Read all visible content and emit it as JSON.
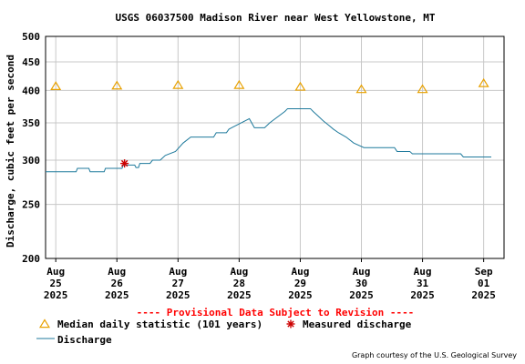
{
  "colors": {
    "discharge": "#1f7a9c",
    "median": "#e8a100",
    "measured": "#cc0000",
    "grid": "#c8c8c8",
    "provisional": "#ff0000"
  },
  "chart_data": {
    "type": "line",
    "title": "USGS 06037500 Madison River near West Yellowstone, MT",
    "ylabel": "Discharge, cubic feet per second",
    "yscale": "log",
    "ylim": [
      200,
      500
    ],
    "yticks": [
      200,
      250,
      300,
      350,
      400,
      450,
      500
    ],
    "xlim": [
      "2025-08-24T20:00",
      "2025-09-01T08:00"
    ],
    "xticks": [
      {
        "date": "2025-08-25",
        "lines": [
          "Aug",
          "25",
          "2025"
        ]
      },
      {
        "date": "2025-08-26",
        "lines": [
          "Aug",
          "26",
          "2025"
        ]
      },
      {
        "date": "2025-08-27",
        "lines": [
          "Aug",
          "27",
          "2025"
        ]
      },
      {
        "date": "2025-08-28",
        "lines": [
          "Aug",
          "28",
          "2025"
        ]
      },
      {
        "date": "2025-08-29",
        "lines": [
          "Aug",
          "29",
          "2025"
        ]
      },
      {
        "date": "2025-08-30",
        "lines": [
          "Aug",
          "30",
          "2025"
        ]
      },
      {
        "date": "2025-08-31",
        "lines": [
          "Aug",
          "31",
          "2025"
        ]
      },
      {
        "date": "2025-09-01",
        "lines": [
          "Sep",
          "01",
          "2025"
        ]
      }
    ],
    "series": [
      {
        "name": "Discharge",
        "style": "line",
        "points": [
          [
            "2025-08-24T20:00",
            286
          ],
          [
            "2025-08-25T08:00",
            286
          ],
          [
            "2025-08-25T08:30",
            290
          ],
          [
            "2025-08-25T13:00",
            290
          ],
          [
            "2025-08-25T13:30",
            286
          ],
          [
            "2025-08-25T19:00",
            286
          ],
          [
            "2025-08-25T19:30",
            290
          ],
          [
            "2025-08-26T02:00",
            290
          ],
          [
            "2025-08-26T02:30",
            294
          ],
          [
            "2025-08-26T07:00",
            294
          ],
          [
            "2025-08-26T07:30",
            291
          ],
          [
            "2025-08-26T08:30",
            291
          ],
          [
            "2025-08-26T09:00",
            296
          ],
          [
            "2025-08-26T13:00",
            296
          ],
          [
            "2025-08-26T14:00",
            300
          ],
          [
            "2025-08-26T17:00",
            300
          ],
          [
            "2025-08-26T19:00",
            306
          ],
          [
            "2025-08-26T23:00",
            311
          ],
          [
            "2025-08-27T02:00",
            322
          ],
          [
            "2025-08-27T05:00",
            330
          ],
          [
            "2025-08-27T14:00",
            330
          ],
          [
            "2025-08-27T15:00",
            336
          ],
          [
            "2025-08-27T19:00",
            336
          ],
          [
            "2025-08-27T20:00",
            341
          ],
          [
            "2025-08-28T04:00",
            356
          ],
          [
            "2025-08-28T06:00",
            343
          ],
          [
            "2025-08-28T10:00",
            343
          ],
          [
            "2025-08-28T12:00",
            350
          ],
          [
            "2025-08-28T18:00",
            367
          ],
          [
            "2025-08-28T19:00",
            371
          ],
          [
            "2025-08-29T04:00",
            371
          ],
          [
            "2025-08-29T05:00",
            367
          ],
          [
            "2025-08-29T07:00",
            360
          ],
          [
            "2025-08-29T09:00",
            353
          ],
          [
            "2025-08-29T11:00",
            347
          ],
          [
            "2025-08-29T13:00",
            341
          ],
          [
            "2025-08-29T15:00",
            336
          ],
          [
            "2025-08-29T18:00",
            330
          ],
          [
            "2025-08-29T21:00",
            322
          ],
          [
            "2025-08-30T01:00",
            316
          ],
          [
            "2025-08-30T13:00",
            316
          ],
          [
            "2025-08-30T14:00",
            311
          ],
          [
            "2025-08-30T19:00",
            311
          ],
          [
            "2025-08-30T20:00",
            308
          ],
          [
            "2025-08-31T15:00",
            308
          ],
          [
            "2025-08-31T16:00",
            304
          ],
          [
            "2025-09-01T03:00",
            304
          ]
        ]
      },
      {
        "name": "Median daily statistic (101 years)",
        "style": "triangle",
        "points": [
          [
            "2025-08-25T00:00",
            407
          ],
          [
            "2025-08-26T00:00",
            408
          ],
          [
            "2025-08-27T00:00",
            409
          ],
          [
            "2025-08-28T00:00",
            409
          ],
          [
            "2025-08-29T00:00",
            406
          ],
          [
            "2025-08-30T00:00",
            402
          ],
          [
            "2025-08-31T00:00",
            402
          ],
          [
            "2025-09-01T00:00",
            412
          ]
        ]
      },
      {
        "name": "Measured discharge",
        "style": "asterisk",
        "points": [
          [
            "2025-08-26T03:00",
            296
          ]
        ]
      }
    ],
    "provisional_note": "---- Provisional Data Subject to Revision ----",
    "credit": "Graph courtesy of the U.S. Geological Survey",
    "legend": [
      {
        "marker": "triangle",
        "label": "Median daily statistic (101 years)"
      },
      {
        "marker": "asterisk",
        "label": "Measured discharge"
      },
      {
        "marker": "line",
        "label": "Discharge"
      }
    ],
    "grid": true
  }
}
